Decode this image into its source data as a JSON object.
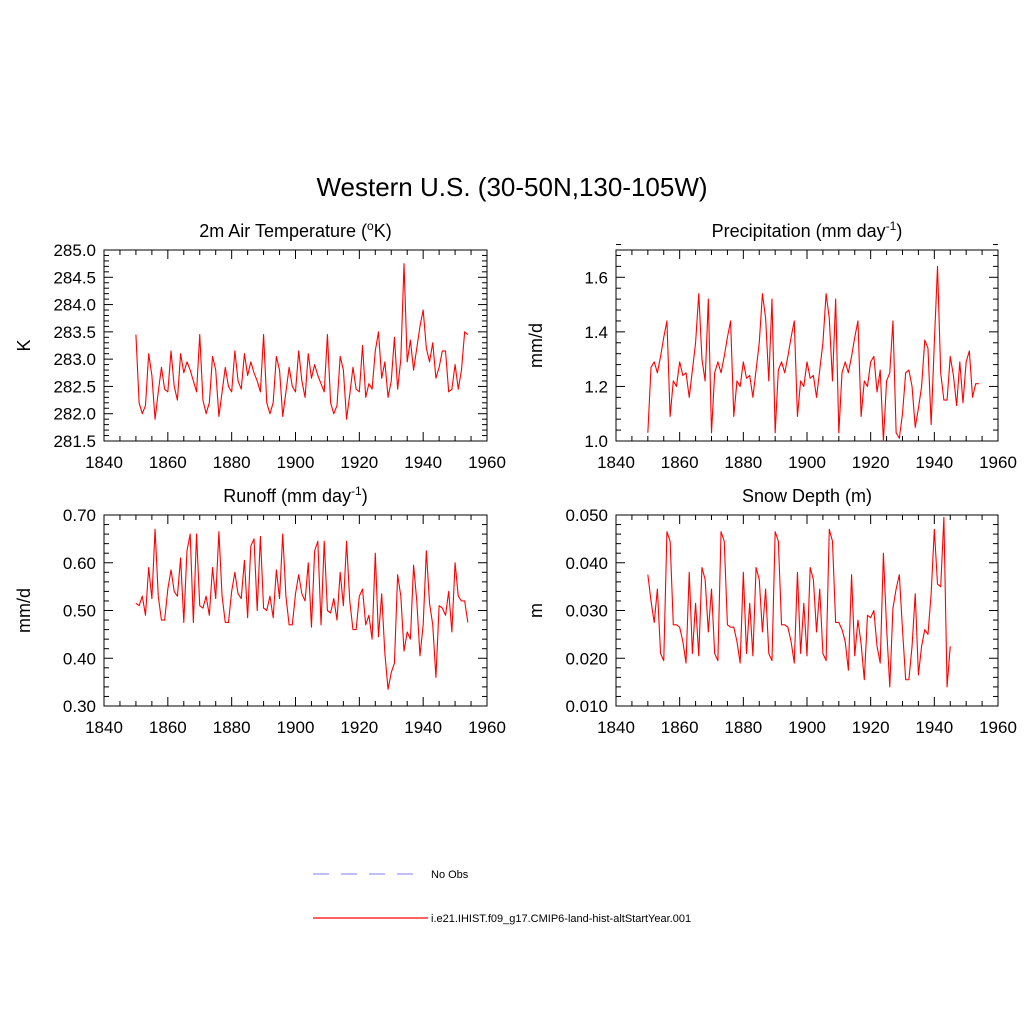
{
  "figure_title": "Western U.S. (30-50N,130-105W)",
  "legend": {
    "items": [
      {
        "label": "No Obs",
        "color": "#9999ff",
        "style": "dashed"
      },
      {
        "label": "i.e21.IHIST.f09_g17.CMIP6-land-hist-altStartYear.001",
        "color": "#ff0000",
        "style": "solid"
      }
    ]
  },
  "chart_data": [
    {
      "type": "line",
      "title_main": "2m Air Temperature (",
      "title_sup": "o",
      "title_tail": "K)",
      "ylabel": "K",
      "xlim": [
        1840,
        1960
      ],
      "ylim": [
        281.5,
        285.0
      ],
      "xticks": [
        1840,
        1860,
        1880,
        1900,
        1920,
        1940,
        1960
      ],
      "yticks": [
        281.5,
        282.0,
        282.5,
        283.0,
        283.5,
        284.0,
        284.5,
        285.0
      ],
      "ytick_labels": [
        "281.5",
        "282.0",
        "282.5",
        "283.0",
        "283.5",
        "284.0",
        "284.5",
        "285.0"
      ],
      "series": [
        {
          "color": "#ff0000",
          "x_start": 1850,
          "x_step": 1,
          "values": [
            283.45,
            282.2,
            282.0,
            282.15,
            283.1,
            282.7,
            281.9,
            282.4,
            282.85,
            282.45,
            282.4,
            283.15,
            282.5,
            282.25,
            283.1,
            282.75,
            282.95,
            282.8,
            282.6,
            282.4,
            283.45,
            282.25,
            282.0,
            282.2,
            283.05,
            282.8,
            281.95,
            282.4,
            282.85,
            282.5,
            282.4,
            283.15,
            282.6,
            282.45,
            283.1,
            282.7,
            282.95,
            282.75,
            282.6,
            282.4,
            283.45,
            282.2,
            282.0,
            282.2,
            283.05,
            282.8,
            281.95,
            282.4,
            282.85,
            282.5,
            282.4,
            283.15,
            282.6,
            282.3,
            283.1,
            282.65,
            282.9,
            282.7,
            282.55,
            282.4,
            283.45,
            282.2,
            282.0,
            282.15,
            283.05,
            282.8,
            281.9,
            282.35,
            282.85,
            282.45,
            282.4,
            283.25,
            282.3,
            282.55,
            282.45,
            283.15,
            283.5,
            282.65,
            282.95,
            282.3,
            282.6,
            283.4,
            282.45,
            283.0,
            284.75,
            282.95,
            283.35,
            282.8,
            283.2,
            283.6,
            283.9,
            283.2,
            282.95,
            283.3,
            282.65,
            282.85,
            283.15,
            283.15,
            282.4,
            282.45,
            282.9,
            282.45,
            282.8,
            283.5,
            283.45
          ]
        }
      ]
    },
    {
      "type": "line",
      "title_main": "Precipitation (mm day",
      "title_sup": "-1",
      "title_tail": ")",
      "ylabel": "mm/d",
      "xlim": [
        1840,
        1960
      ],
      "ylim": [
        1.0,
        1.7
      ],
      "xticks": [
        1840,
        1860,
        1880,
        1900,
        1920,
        1940,
        1960
      ],
      "yticks": [
        1.0,
        1.2,
        1.4,
        1.6
      ],
      "ytick_labels": [
        "1.0",
        "1.2",
        "1.4",
        "1.6"
      ],
      "series": [
        {
          "color": "#ff0000",
          "x_start": 1850,
          "x_step": 1,
          "values": [
            1.03,
            1.27,
            1.29,
            1.25,
            1.31,
            1.38,
            1.44,
            1.09,
            1.22,
            1.2,
            1.29,
            1.24,
            1.25,
            1.16,
            1.26,
            1.36,
            1.54,
            1.3,
            1.22,
            1.52,
            1.03,
            1.25,
            1.29,
            1.25,
            1.31,
            1.38,
            1.44,
            1.09,
            1.22,
            1.2,
            1.29,
            1.23,
            1.24,
            1.16,
            1.26,
            1.36,
            1.54,
            1.45,
            1.22,
            1.52,
            1.03,
            1.26,
            1.29,
            1.25,
            1.31,
            1.38,
            1.44,
            1.09,
            1.22,
            1.2,
            1.29,
            1.23,
            1.24,
            1.16,
            1.26,
            1.36,
            1.54,
            1.45,
            1.22,
            1.52,
            1.03,
            1.25,
            1.29,
            1.25,
            1.31,
            1.38,
            1.44,
            1.09,
            1.22,
            1.2,
            1.29,
            1.31,
            1.18,
            1.26,
            1.0,
            1.22,
            1.25,
            1.44,
            1.03,
            1.01,
            1.1,
            1.25,
            1.26,
            1.2,
            1.05,
            1.12,
            1.2,
            1.37,
            1.34,
            1.06,
            1.36,
            1.64,
            1.25,
            1.15,
            1.15,
            1.31,
            1.24,
            1.13,
            1.29,
            1.14,
            1.29,
            1.33,
            1.16,
            1.21,
            1.21
          ]
        }
      ]
    },
    {
      "type": "line",
      "title_main": "Runoff (mm day",
      "title_sup": "-1",
      "title_tail": ")",
      "ylabel": "mm/d",
      "xlim": [
        1840,
        1960
      ],
      "ylim": [
        0.3,
        0.7
      ],
      "xticks": [
        1840,
        1860,
        1880,
        1900,
        1920,
        1940,
        1960
      ],
      "yticks": [
        0.3,
        0.4,
        0.5,
        0.6,
        0.7
      ],
      "ytick_labels": [
        "0.30",
        "0.40",
        "0.50",
        "0.60",
        "0.70"
      ],
      "series": [
        {
          "color": "#ff0000",
          "x_start": 1850,
          "x_step": 1,
          "values": [
            0.515,
            0.51,
            0.53,
            0.49,
            0.59,
            0.525,
            0.67,
            0.53,
            0.48,
            0.48,
            0.545,
            0.585,
            0.54,
            0.53,
            0.61,
            0.475,
            0.625,
            0.66,
            0.475,
            0.66,
            0.51,
            0.505,
            0.53,
            0.49,
            0.59,
            0.525,
            0.665,
            0.53,
            0.475,
            0.475,
            0.54,
            0.58,
            0.535,
            0.525,
            0.605,
            0.485,
            0.635,
            0.65,
            0.5,
            0.655,
            0.505,
            0.5,
            0.53,
            0.485,
            0.585,
            0.525,
            0.66,
            0.53,
            0.47,
            0.47,
            0.535,
            0.575,
            0.535,
            0.52,
            0.6,
            0.465,
            0.625,
            0.645,
            0.47,
            0.645,
            0.5,
            0.495,
            0.525,
            0.48,
            0.58,
            0.51,
            0.645,
            0.52,
            0.46,
            0.46,
            0.53,
            0.545,
            0.47,
            0.49,
            0.44,
            0.62,
            0.445,
            0.535,
            0.41,
            0.335,
            0.37,
            0.39,
            0.575,
            0.53,
            0.415,
            0.455,
            0.44,
            0.595,
            0.52,
            0.405,
            0.47,
            0.625,
            0.515,
            0.47,
            0.36,
            0.51,
            0.505,
            0.49,
            0.54,
            0.455,
            0.6,
            0.53,
            0.52,
            0.52,
            0.475
          ]
        }
      ]
    },
    {
      "type": "line",
      "title_main": "Snow Depth (m)",
      "title_sup": "",
      "title_tail": "",
      "ylabel": "m",
      "xlim": [
        1840,
        1960
      ],
      "ylim": [
        0.01,
        0.05
      ],
      "xticks": [
        1840,
        1860,
        1880,
        1900,
        1920,
        1940,
        1960
      ],
      "yticks": [
        0.01,
        0.02,
        0.03,
        0.04,
        0.05
      ],
      "ytick_labels": [
        "0.010",
        "0.020",
        "0.030",
        "0.040",
        "0.050"
      ],
      "series": [
        {
          "color": "#ff0000",
          "x_start": 1850,
          "x_step": 1,
          "values": [
            0.0375,
            0.032,
            0.0275,
            0.0345,
            0.021,
            0.0195,
            0.0465,
            0.0445,
            0.027,
            0.027,
            0.0265,
            0.0235,
            0.019,
            0.038,
            0.021,
            0.0315,
            0.0205,
            0.039,
            0.0365,
            0.0255,
            0.0345,
            0.021,
            0.0195,
            0.0465,
            0.0445,
            0.027,
            0.0265,
            0.0265,
            0.0235,
            0.019,
            0.038,
            0.021,
            0.0315,
            0.0205,
            0.039,
            0.0365,
            0.0255,
            0.0345,
            0.021,
            0.0195,
            0.0465,
            0.0445,
            0.027,
            0.027,
            0.0265,
            0.0235,
            0.019,
            0.038,
            0.021,
            0.0315,
            0.0205,
            0.039,
            0.0365,
            0.0255,
            0.0345,
            0.021,
            0.0195,
            0.047,
            0.0445,
            0.0275,
            0.0275,
            0.026,
            0.0235,
            0.0175,
            0.0375,
            0.0205,
            0.028,
            0.023,
            0.0155,
            0.029,
            0.0285,
            0.03,
            0.0225,
            0.019,
            0.042,
            0.0265,
            0.014,
            0.0305,
            0.0345,
            0.0375,
            0.026,
            0.0155,
            0.0155,
            0.0225,
            0.0335,
            0.0165,
            0.0225,
            0.026,
            0.025,
            0.0335,
            0.047,
            0.0355,
            0.035,
            0.0495,
            0.014,
            0.0225
          ]
        }
      ]
    }
  ]
}
